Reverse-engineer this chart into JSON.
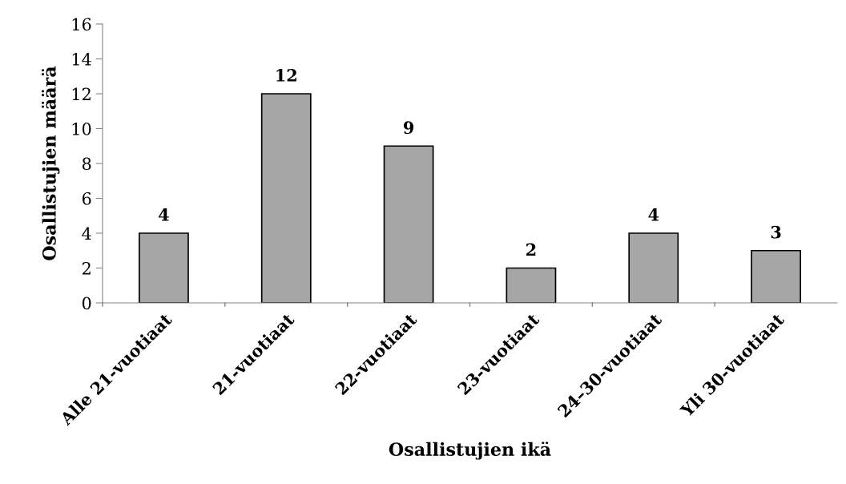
{
  "chart_data": {
    "type": "bar",
    "xlabel": "Osallistujien ikä",
    "ylabel": "Osallistujien määrä",
    "categories": [
      "Alle 21-vuotiaat",
      "21-vuotiaat",
      "22-vuotiaat",
      "23-vuotiaat",
      "24–30-vuotiaat",
      "Yli 30-vuotiaat"
    ],
    "values": [
      4,
      12,
      9,
      2,
      4,
      3
    ],
    "color": "#a6a6a6",
    "ylim": [
      0,
      16
    ],
    "yticks": [
      0,
      2,
      4,
      6,
      8,
      10,
      12,
      14,
      16
    ],
    "grid": false,
    "data_labels": true
  }
}
